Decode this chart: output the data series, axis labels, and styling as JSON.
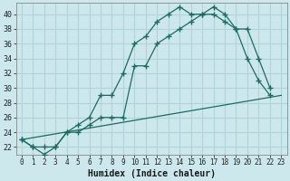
{
  "xlabel": "Humidex (Indice chaleur)",
  "bg_color": "#cce8ec",
  "grid_color": "#b0d4d8",
  "line_color": "#1e6b60",
  "xlim": [
    -0.5,
    23.5
  ],
  "ylim": [
    21.0,
    41.5
  ],
  "yticks": [
    22,
    24,
    26,
    28,
    30,
    32,
    34,
    36,
    38,
    40
  ],
  "xticks": [
    0,
    1,
    2,
    3,
    4,
    5,
    6,
    7,
    8,
    9,
    10,
    11,
    12,
    13,
    14,
    15,
    16,
    17,
    18,
    19,
    20,
    21,
    22,
    23
  ],
  "line1_x": [
    0,
    1,
    2,
    3,
    4,
    5,
    6,
    7,
    8,
    9,
    10,
    11,
    12,
    13,
    14,
    15,
    16,
    17,
    18,
    19,
    20,
    21,
    22
  ],
  "line1_y": [
    23,
    22,
    21,
    22,
    24,
    25,
    26,
    29,
    29,
    32,
    36,
    37,
    39,
    40,
    41,
    40,
    40,
    41,
    40,
    38,
    34,
    31,
    29
  ],
  "line2_x": [
    0,
    1,
    2,
    3,
    4,
    5,
    6,
    7,
    8,
    9,
    10,
    11,
    12,
    13,
    14,
    15,
    16,
    17,
    18,
    19,
    20,
    21,
    22
  ],
  "line2_y": [
    23,
    22,
    22,
    22,
    24,
    24,
    25,
    26,
    26,
    26,
    33,
    33,
    36,
    37,
    38,
    39,
    40,
    40,
    39,
    38,
    38,
    34,
    30
  ],
  "line3_x": [
    0,
    23
  ],
  "line3_y": [
    23,
    29
  ]
}
